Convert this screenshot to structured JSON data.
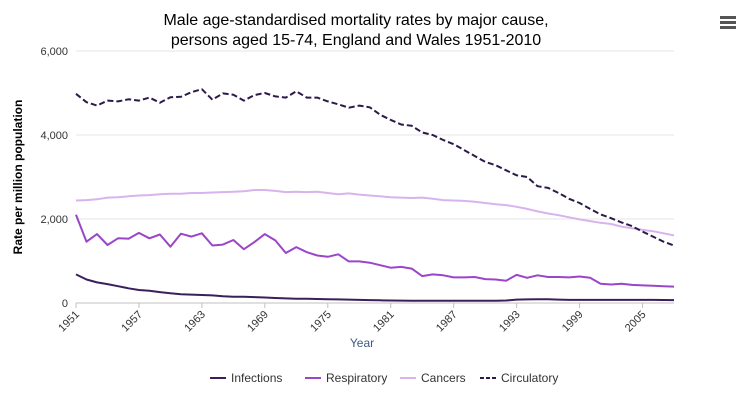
{
  "chart_data": {
    "type": "line",
    "title_lines": [
      "Male age-standardised mortality rates by major cause,",
      "persons aged 15-74, England and Wales 1951-2010"
    ],
    "xlabel": "Year",
    "ylabel": "Rate per million population",
    "xlim": [
      1951,
      2008
    ],
    "ylim": [
      0,
      6000
    ],
    "x_tick_labels": [
      "1951",
      "1957",
      "1963",
      "1969",
      "1975",
      "1981",
      "1987",
      "1993",
      "1999",
      "2005"
    ],
    "y_tick_labels": [
      "0",
      "2,000",
      "4,000",
      "6,000"
    ],
    "x": [
      1951,
      1952,
      1953,
      1954,
      1955,
      1956,
      1957,
      1958,
      1959,
      1960,
      1961,
      1962,
      1963,
      1964,
      1965,
      1966,
      1967,
      1968,
      1969,
      1970,
      1971,
      1972,
      1973,
      1974,
      1975,
      1976,
      1977,
      1978,
      1979,
      1980,
      1981,
      1982,
      1983,
      1984,
      1985,
      1986,
      1987,
      1988,
      1989,
      1990,
      1991,
      1992,
      1993,
      1994,
      1995,
      1996,
      1997,
      1998,
      1999,
      2000,
      2001,
      2002,
      2003,
      2004,
      2005,
      2006,
      2007,
      2008
    ],
    "series": [
      {
        "name": "Infections",
        "color": "#3b1f5c",
        "dash": "solid",
        "values": [
          680,
          560,
          490,
          450,
          400,
          350,
          310,
          290,
          260,
          230,
          210,
          200,
          190,
          180,
          160,
          150,
          150,
          140,
          130,
          120,
          110,
          100,
          100,
          95,
          90,
          85,
          80,
          75,
          70,
          65,
          60,
          58,
          55,
          55,
          55,
          55,
          55,
          55,
          55,
          55,
          55,
          60,
          80,
          85,
          90,
          90,
          80,
          75,
          75,
          75,
          75,
          75,
          75,
          75,
          75,
          75,
          72,
          70
        ]
      },
      {
        "name": "Respiratory",
        "color": "#9b45c9",
        "dash": "solid",
        "values": [
          2100,
          1460,
          1640,
          1380,
          1540,
          1530,
          1670,
          1540,
          1630,
          1340,
          1650,
          1580,
          1660,
          1370,
          1390,
          1500,
          1280,
          1450,
          1640,
          1490,
          1190,
          1330,
          1210,
          1130,
          1100,
          1160,
          990,
          990,
          960,
          900,
          840,
          860,
          820,
          640,
          680,
          660,
          610,
          610,
          620,
          570,
          560,
          530,
          670,
          600,
          660,
          620,
          620,
          610,
          630,
          600,
          460,
          440,
          460,
          430,
          420,
          410,
          400,
          390
        ]
      },
      {
        "name": "Cancers",
        "color": "#d9b3ec",
        "dash": "solid",
        "values": [
          2440,
          2450,
          2470,
          2510,
          2520,
          2540,
          2560,
          2570,
          2590,
          2600,
          2600,
          2620,
          2620,
          2630,
          2640,
          2650,
          2660,
          2690,
          2690,
          2670,
          2640,
          2650,
          2640,
          2650,
          2620,
          2590,
          2610,
          2580,
          2560,
          2540,
          2520,
          2510,
          2500,
          2510,
          2480,
          2450,
          2440,
          2430,
          2410,
          2380,
          2350,
          2330,
          2290,
          2240,
          2180,
          2130,
          2090,
          2040,
          1990,
          1950,
          1910,
          1880,
          1820,
          1780,
          1740,
          1710,
          1660,
          1610
        ]
      },
      {
        "name": "Circulatory",
        "color": "#2b1a4a",
        "dash": "dashed",
        "values": [
          4980,
          4780,
          4700,
          4820,
          4800,
          4850,
          4820,
          4890,
          4770,
          4900,
          4910,
          5020,
          5090,
          4840,
          4990,
          4960,
          4820,
          4950,
          5000,
          4920,
          4890,
          5040,
          4890,
          4890,
          4800,
          4730,
          4650,
          4700,
          4660,
          4480,
          4360,
          4250,
          4220,
          4060,
          4000,
          3880,
          3780,
          3640,
          3500,
          3360,
          3280,
          3160,
          3040,
          3000,
          2780,
          2740,
          2620,
          2480,
          2380,
          2240,
          2110,
          2020,
          1920,
          1830,
          1700,
          1580,
          1460,
          1370
        ]
      }
    ],
    "legend": {
      "position": "bottom"
    },
    "grid": {
      "horizontal": true,
      "vertical": false
    }
  },
  "ui": {
    "menu_icon": "hamburger-menu-icon"
  }
}
